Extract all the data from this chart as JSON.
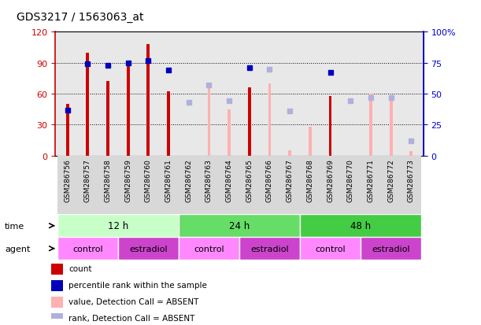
{
  "title": "GDS3217 / 1563063_at",
  "samples": [
    "GSM286756",
    "GSM286757",
    "GSM286758",
    "GSM286759",
    "GSM286760",
    "GSM286761",
    "GSM286762",
    "GSM286763",
    "GSM286764",
    "GSM286765",
    "GSM286766",
    "GSM286767",
    "GSM286768",
    "GSM286769",
    "GSM286770",
    "GSM286771",
    "GSM286772",
    "GSM286773"
  ],
  "count_values": [
    50,
    100,
    72,
    88,
    108,
    62,
    null,
    null,
    null,
    66,
    null,
    null,
    null,
    58,
    null,
    null,
    null,
    null
  ],
  "count_absent": [
    null,
    null,
    null,
    null,
    null,
    null,
    null,
    68,
    45,
    null,
    70,
    5,
    28,
    null,
    null,
    60,
    58,
    4
  ],
  "rank_values": [
    37,
    74,
    73,
    75,
    77,
    69,
    null,
    null,
    null,
    71,
    null,
    null,
    null,
    67,
    null,
    null,
    null,
    null
  ],
  "rank_absent": [
    null,
    null,
    null,
    null,
    null,
    null,
    43,
    57,
    44,
    null,
    70,
    36,
    null,
    null,
    44,
    47,
    47,
    12
  ],
  "ylim_left": [
    0,
    120
  ],
  "ylim_right": [
    0,
    100
  ],
  "yticks_left": [
    0,
    30,
    60,
    90,
    120
  ],
  "ytick_labels_left": [
    "0",
    "30",
    "60",
    "90",
    "120"
  ],
  "yticks_right": [
    0,
    25,
    50,
    75,
    100
  ],
  "ytick_labels_right": [
    "0",
    "25",
    "50",
    "75",
    "100%"
  ],
  "left_axis_color": "#cc0000",
  "right_axis_color": "#0000cc",
  "bar_color_count": "#cc0000",
  "bar_color_rank": "#0000bb",
  "bar_color_count_absent": "#ffb0b0",
  "bar_color_rank_absent": "#b0b0dd",
  "bg_color": "#e8e8e8",
  "time_groups": [
    {
      "label": "12 h",
      "start": 0,
      "end": 6,
      "color": "#c8ffc8"
    },
    {
      "label": "24 h",
      "start": 6,
      "end": 12,
      "color": "#66dd66"
    },
    {
      "label": "48 h",
      "start": 12,
      "end": 18,
      "color": "#44cc44"
    }
  ],
  "agent_groups": [
    {
      "label": "control",
      "start": 0,
      "end": 3,
      "color": "#ff88ff"
    },
    {
      "label": "estradiol",
      "start": 3,
      "end": 6,
      "color": "#cc44cc"
    },
    {
      "label": "control",
      "start": 6,
      "end": 9,
      "color": "#ff88ff"
    },
    {
      "label": "estradiol",
      "start": 9,
      "end": 12,
      "color": "#cc44cc"
    },
    {
      "label": "control",
      "start": 12,
      "end": 15,
      "color": "#ff88ff"
    },
    {
      "label": "estradiol",
      "start": 15,
      "end": 18,
      "color": "#cc44cc"
    }
  ]
}
